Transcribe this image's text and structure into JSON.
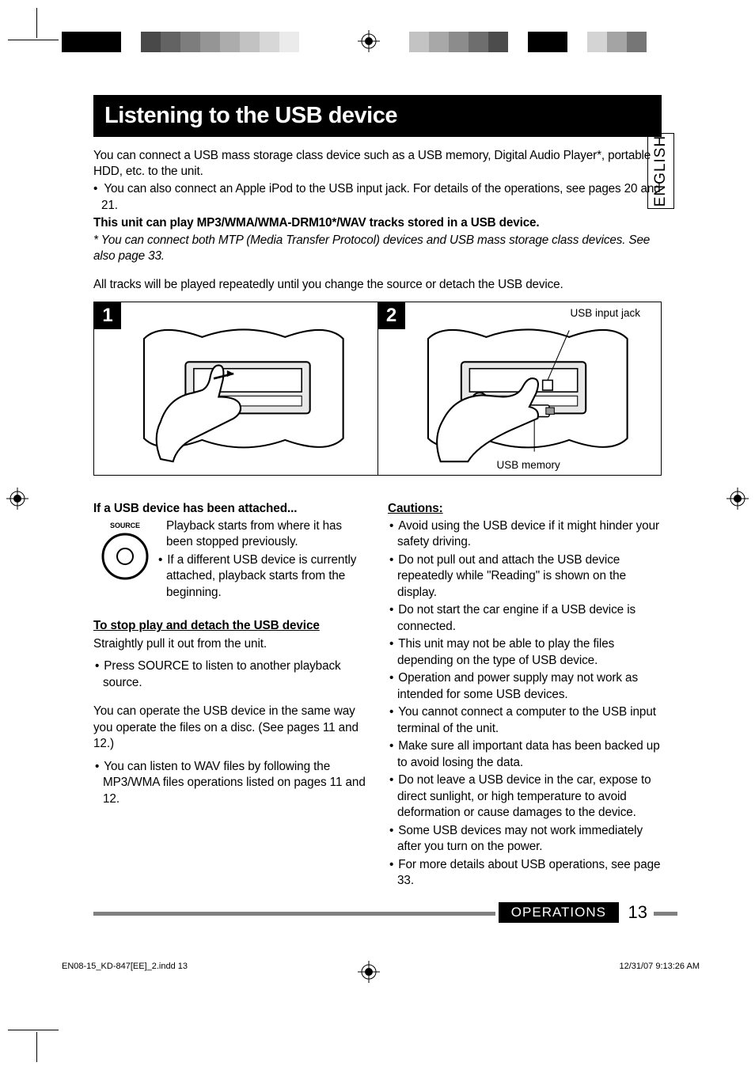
{
  "colorbar_left": [
    "#000000",
    "#000000",
    "#000000",
    "#ffffff",
    "#494949",
    "#636363",
    "#7d7d7d",
    "#959595",
    "#acacac",
    "#c2c2c2",
    "#d7d7d7",
    "#ebebeb"
  ],
  "colorbar_right": [
    "#c3c3c3",
    "#a8a8a8",
    "#8c8c8c",
    "#6e6e6e",
    "#4c4c4c",
    "#ffffff",
    "#000000",
    "#000000",
    "#ffffff",
    "#d4d4d4",
    "#a4a4a4",
    "#767676"
  ],
  "title": "Listening to the USB device",
  "side_tab": "ENGLISH",
  "intro": {
    "p1": "You can connect a USB mass storage class device such as a USB memory, Digital Audio Player*, portable HDD, etc. to the unit.",
    "li1": "You can also connect an Apple iPod to the USB input jack. For details of the operations, see pages 20 and 21.",
    "bold": "This unit can play MP3/WMA/WMA-DRM10*/WAV tracks stored in a USB device.",
    "note": "*  You can connect both MTP (Media Transfer Protocol) devices and USB mass storage class devices. See also page 33.",
    "p2": "All tracks will be played repeatedly until you change the source or detach the USB device."
  },
  "steps": {
    "n1": "1",
    "n2": "2",
    "label_jack": "USB input jack",
    "label_mem": "USB memory"
  },
  "left": {
    "h1": "If a USB device has been attached...",
    "source_label": "SOURCE",
    "p1": "Playback starts from where it has been stopped previously.",
    "li1": "If a different USB device is currently attached, playback starts from the beginning.",
    "h2": "To stop play and detach the USB device",
    "p2": "Straightly pull it out from the unit.",
    "li2": "Press SOURCE to listen to another playback source.",
    "p3": "You can operate the USB device in the same way you operate the files on a disc. (See pages 11 and 12.)",
    "li3": "You can listen to WAV files by following the MP3/WMA files operations listed on pages 11 and 12."
  },
  "right": {
    "h": "Cautions:",
    "items": [
      "Avoid using the USB device if it might hinder your safety driving.",
      "Do not pull out and attach the USB device repeatedly while \"Reading\" is shown on the display.",
      "Do not start the car engine if a USB device is connected.",
      "This unit may not be able to play the files depending on the type of USB device.",
      "Operation and power supply may not work as intended for some USB devices.",
      "You cannot connect a computer to the USB input terminal of the unit.",
      "Make sure all important data has been backed up to avoid losing the data.",
      "Do not leave a USB device in the car, expose to direct sunlight, or high temperature to avoid deformation or cause damages to the device.",
      "Some USB devices may not work immediately after you turn on the power.",
      "For more details about USB operations, see page 33."
    ]
  },
  "footer": {
    "section": "OPERATIONS",
    "page": "13"
  },
  "imprint": {
    "left": "EN08-15_KD-847[EE]_2.indd   13",
    "right": "12/31/07   9:13:26 AM"
  }
}
